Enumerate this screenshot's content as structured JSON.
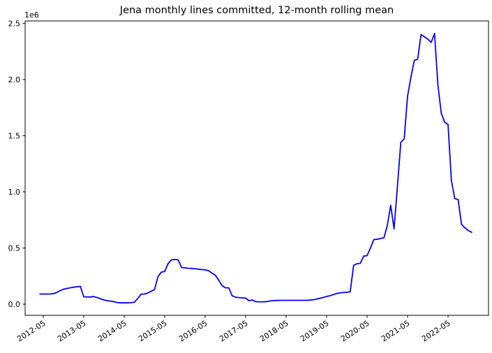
{
  "chart_data": {
    "type": "line",
    "title": "Jena monthly lines committed, 12-month rolling mean",
    "xlabel": "",
    "ylabel": "",
    "y_offset_label": "1e6",
    "ylim": [
      0,
      2500000
    ],
    "grid": false,
    "legend_position": "none",
    "line_color": "#0000ff",
    "axis_color": "#000000",
    "y_ticks": [
      0.0,
      0.5,
      1.0,
      1.5,
      2.0,
      2.5
    ],
    "y_tick_labels": [
      "0.0",
      "0.5",
      "1.0",
      "1.5",
      "2.0",
      "2.5"
    ],
    "x_tick_labels": [
      "2012-05",
      "2013-05",
      "2014-05",
      "2015-05",
      "2016-05",
      "2017-05",
      "2018-05",
      "2019-05",
      "2020-05",
      "2021-05",
      "2022-05"
    ],
    "series": [
      {
        "name": "12-month rolling mean",
        "x": [
          "2012-04",
          "2012-05",
          "2012-06",
          "2012-07",
          "2012-08",
          "2012-09",
          "2012-10",
          "2012-11",
          "2012-12",
          "2013-01",
          "2013-02",
          "2013-03",
          "2013-04",
          "2013-05",
          "2013-06",
          "2013-07",
          "2013-08",
          "2013-09",
          "2013-10",
          "2013-11",
          "2013-12",
          "2014-01",
          "2014-02",
          "2014-03",
          "2014-04",
          "2014-05",
          "2014-06",
          "2014-07",
          "2014-08",
          "2014-09",
          "2014-10",
          "2014-11",
          "2014-12",
          "2015-01",
          "2015-02",
          "2015-03",
          "2015-04",
          "2015-05",
          "2015-06",
          "2015-07",
          "2015-08",
          "2015-09",
          "2015-10",
          "2015-11",
          "2015-12",
          "2016-01",
          "2016-02",
          "2016-03",
          "2016-04",
          "2016-05",
          "2016-06",
          "2016-07",
          "2016-08",
          "2016-09",
          "2016-10",
          "2016-11",
          "2016-12",
          "2017-01",
          "2017-02",
          "2017-03",
          "2017-04",
          "2017-05",
          "2017-06",
          "2017-07",
          "2017-08",
          "2017-09",
          "2017-10",
          "2017-11",
          "2017-12",
          "2018-01",
          "2018-02",
          "2018-03",
          "2018-04",
          "2018-05",
          "2018-06",
          "2018-07",
          "2018-08",
          "2018-09",
          "2018-10",
          "2018-11",
          "2018-12",
          "2019-01",
          "2019-02",
          "2019-03",
          "2019-04",
          "2019-05",
          "2019-06",
          "2019-07",
          "2019-08",
          "2019-09",
          "2019-10",
          "2019-11",
          "2019-12",
          "2020-01",
          "2020-02",
          "2020-03",
          "2020-04",
          "2020-05",
          "2020-06",
          "2020-07",
          "2020-08",
          "2020-09",
          "2020-10",
          "2020-11",
          "2020-12",
          "2021-01",
          "2021-02",
          "2021-03",
          "2021-04",
          "2021-05",
          "2021-06",
          "2021-07",
          "2021-08",
          "2021-09",
          "2021-10",
          "2021-11",
          "2021-12",
          "2022-01",
          "2022-02",
          "2022-03",
          "2022-04",
          "2022-05",
          "2022-06",
          "2022-07",
          "2022-08",
          "2022-09",
          "2022-10",
          "2022-11",
          "2022-12"
        ],
        "values": [
          90000,
          90000,
          90000,
          91000,
          93000,
          104000,
          120000,
          133000,
          140000,
          146000,
          151000,
          155000,
          158000,
          65000,
          64000,
          64000,
          68000,
          58000,
          48000,
          37000,
          31000,
          27000,
          21000,
          14000,
          12000,
          12000,
          12000,
          13000,
          17000,
          50000,
          89000,
          90000,
          100000,
          115000,
          130000,
          245000,
          285000,
          291000,
          360000,
          394000,
          398000,
          394000,
          326000,
          323000,
          320000,
          318000,
          315000,
          311000,
          308000,
          305000,
          297000,
          276000,
          258000,
          215000,
          165000,
          146000,
          145000,
          75000,
          62000,
          58000,
          56000,
          54000,
          31000,
          37000,
          22000,
          21000,
          21000,
          22000,
          27000,
          31000,
          33000,
          34000,
          34000,
          34000,
          34000,
          34000,
          34000,
          34000,
          34000,
          34000,
          36000,
          39000,
          45000,
          52000,
          60000,
          68000,
          75000,
          85000,
          95000,
          100000,
          103000,
          106000,
          110000,
          345000,
          360000,
          363000,
          428000,
          432000,
          500000,
          575000,
          577000,
          585000,
          590000,
          700000,
          880000,
          670000,
          1050000,
          1440000,
          1470000,
          1850000,
          2020000,
          2170000,
          2180000,
          2400000,
          2380000,
          2360000,
          2330000,
          2410000,
          1950000,
          1700000,
          1620000,
          1600000,
          1100000,
          940000,
          930000,
          710000,
          680000,
          655000,
          640000
        ]
      }
    ]
  }
}
